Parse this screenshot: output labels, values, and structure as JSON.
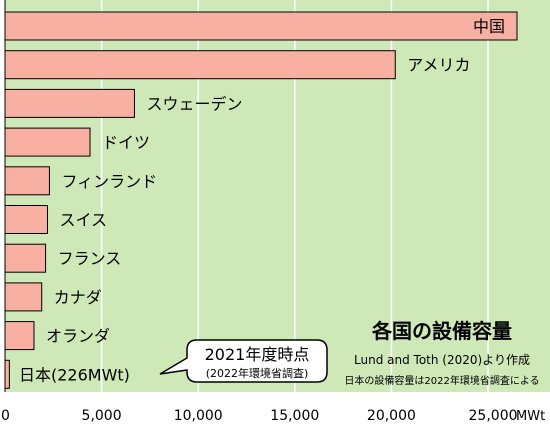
{
  "chart_data": {
    "type": "bar",
    "orientation": "horizontal",
    "categories": [
      "中国",
      "アメリカ",
      "スウェーデン",
      "ドイツ",
      "フィンランド",
      "スイス",
      "フランス",
      "カナダ",
      "オランダ",
      "日本(226MWt)"
    ],
    "values": [
      26500,
      20200,
      6700,
      4400,
      2300,
      2200,
      2100,
      1900,
      1500,
      226
    ],
    "xlim": [
      0,
      28000
    ],
    "xticks": [
      "0",
      "5,000",
      "10,000",
      "15,000",
      "20,000",
      "25,000"
    ],
    "xtick_values": [
      0,
      5000,
      10000,
      15000,
      20000,
      25000
    ],
    "xunit": "MWt",
    "grid": "vertical",
    "title": "各国の設備容量",
    "source_lines": [
      "Lund and Toth (2020)より作成",
      "日本の設備容量は2022年環境省調査による"
    ],
    "callout": {
      "title": "2021年度時点",
      "subtitle": "(2022年環境省調査)"
    },
    "colors": {
      "background": "#cfe8b8",
      "bar_fill": "#f8b0a3",
      "bar_stroke": "#000000",
      "gridline": "#ffffff",
      "highlight_label": "#e8231a"
    },
    "highlight_index": 9
  }
}
